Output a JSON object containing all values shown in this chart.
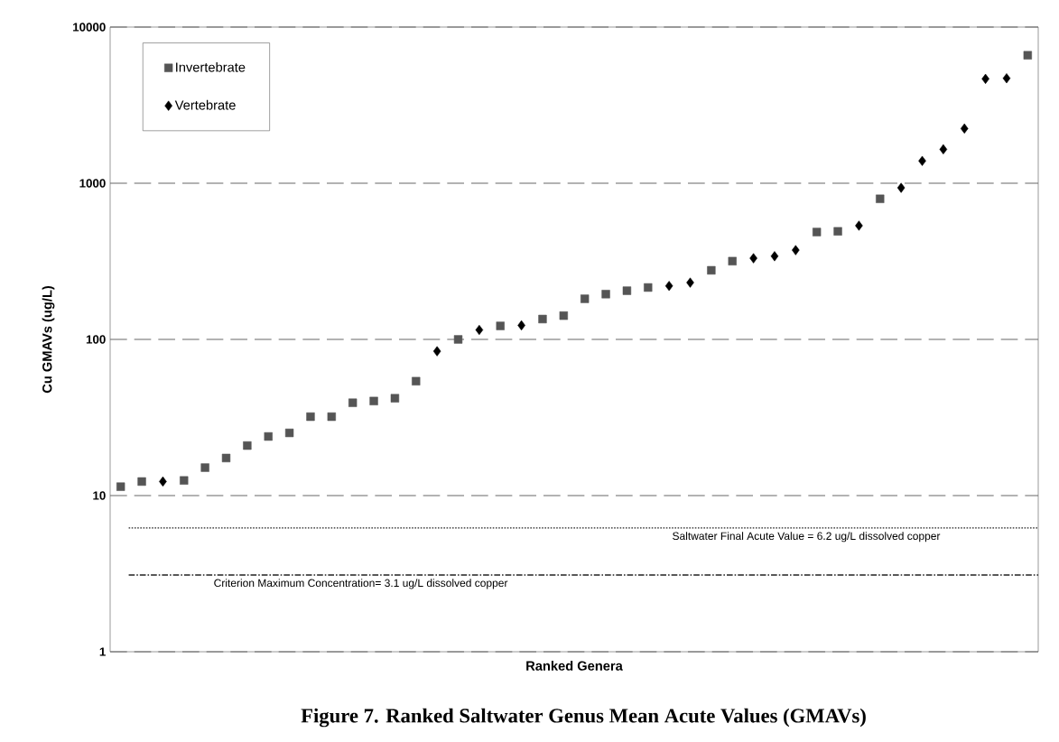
{
  "chart_data": {
    "type": "scatter",
    "title": "Figure 7. Ranked Saltwater Genus Mean Acute Values (GMAVs)",
    "xlabel": "Ranked Genera",
    "ylabel": "Cu GMAVs (ug/L)",
    "categories": [
      null,
      null,
      null,
      null,
      null,
      null,
      null,
      null,
      null,
      null,
      null,
      null,
      null,
      null,
      null,
      null,
      null,
      null,
      null,
      null,
      null,
      null,
      null,
      null,
      null,
      null,
      null,
      null,
      null,
      null,
      null,
      null,
      null,
      null,
      null,
      null,
      null,
      null,
      null,
      null,
      null,
      null,
      null,
      null
    ],
    "series": [
      {
        "name": "Invertebrate",
        "color": "#555555",
        "marker": "square",
        "values": [
          11.4,
          12.3,
          null,
          12.5,
          15.1,
          17.4,
          20.9,
          23.9,
          25.2,
          32,
          32,
          39.3,
          40.3,
          42,
          54,
          null,
          100,
          null,
          122,
          null,
          135,
          142,
          182,
          195,
          205,
          215,
          null,
          null,
          277,
          317,
          null,
          null,
          null,
          487,
          492,
          null,
          795,
          null,
          null,
          null,
          null,
          null,
          null,
          6600
        ]
      },
      {
        "name": "Vertebrate",
        "color": "#000000",
        "marker": "diamond",
        "values": [
          null,
          null,
          12.3,
          null,
          null,
          null,
          null,
          null,
          null,
          null,
          null,
          null,
          null,
          null,
          null,
          84,
          null,
          115,
          null,
          123,
          null,
          null,
          null,
          null,
          null,
          null,
          220,
          231,
          null,
          null,
          331,
          341,
          373,
          null,
          null,
          535,
          null,
          935,
          1390,
          1650,
          2240,
          4660,
          4700,
          null
        ]
      }
    ],
    "log": "y",
    "ylim": [
      1,
      10000
    ],
    "yticks": [
      1,
      10,
      100,
      1000,
      10000
    ],
    "grid": "y",
    "legend": "top left",
    "ref_lines": [
      {
        "axis": "y",
        "value": 6.2,
        "label": "Saltwater Final Acute Value = 6.2  ug/L dissolved copper",
        "line_style": "dotted",
        "color": "#222222"
      },
      {
        "axis": "y",
        "value": 3.1,
        "label": "Criterion Maximum Concentration= 3.1 ug/L dissolved copper",
        "line_style": "dashdot",
        "color": "#222222"
      }
    ]
  }
}
